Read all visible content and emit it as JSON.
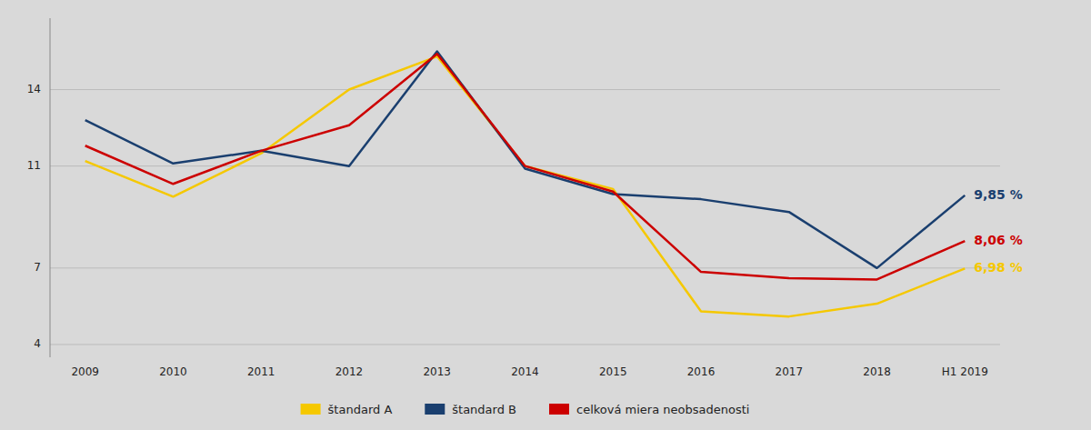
{
  "chart_data": {
    "type": "line",
    "categories": [
      "2009",
      "2010",
      "2011",
      "2012",
      "2013",
      "2014",
      "2015",
      "2016",
      "2017",
      "2018",
      "H1 2019"
    ],
    "series": [
      {
        "name": "štandard A",
        "color": "#f5c800",
        "values": [
          11.2,
          9.8,
          11.5,
          14.0,
          15.3,
          11.0,
          10.1,
          5.3,
          5.1,
          5.6,
          6.98
        ]
      },
      {
        "name": "štandard B",
        "color": "#1a3f6f",
        "values": [
          12.8,
          11.1,
          11.6,
          11.0,
          15.5,
          10.9,
          9.9,
          9.7,
          9.2,
          7.0,
          9.85
        ]
      },
      {
        "name": "celková miera neobsadenosti",
        "color": "#cc0000",
        "values": [
          11.8,
          10.3,
          11.6,
          12.6,
          15.4,
          11.0,
          10.0,
          6.85,
          6.6,
          6.55,
          8.06
        ]
      }
    ],
    "annotations": [
      {
        "text": "9,85 %",
        "x": "H1 2019",
        "y": 9.85,
        "color": "#1a3f6f"
      },
      {
        "text": "8,06 %",
        "x": "H1 2019",
        "y": 8.06,
        "color": "#cc0000"
      },
      {
        "text": "6,98 %",
        "x": "H1 2019",
        "y": 6.98,
        "color": "#f5c800"
      }
    ],
    "ylim": [
      3.5,
      16.8
    ],
    "yticks": [
      4,
      7,
      11,
      14
    ],
    "grid": true,
    "legend": "bottom"
  }
}
